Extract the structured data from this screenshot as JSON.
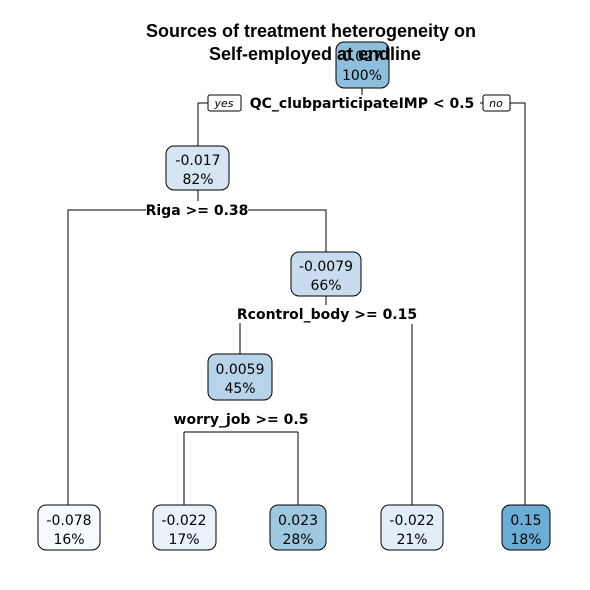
{
  "title": {
    "line1": "Sources of treatment heterogeneity on",
    "line2": "Self-employed at endline"
  },
  "nodes": {
    "root": {
      "value": "0.027",
      "pct": "100%",
      "color": "#8dbfdc"
    },
    "n_left": {
      "value": "-0.017",
      "pct": "82%",
      "color": "#d5e5f4"
    },
    "n_right_mid": {
      "value": "-0.0079",
      "pct": "66%",
      "color": "#c9dcef"
    },
    "n_inner": {
      "value": "0.0059",
      "pct": "45%",
      "color": "#b7d4ea"
    },
    "leaf1": {
      "value": "-0.078",
      "pct": "16%",
      "color": "#f7fbff"
    },
    "leaf2": {
      "value": "-0.022",
      "pct": "17%",
      "color": "#e9f2fa"
    },
    "leaf3": {
      "value": "0.023",
      "pct": "28%",
      "color": "#9dc8e0"
    },
    "leaf4": {
      "value": "-0.022",
      "pct": "21%",
      "color": "#e1edf8"
    },
    "leaf5": {
      "value": "0.15",
      "pct": "18%",
      "color": "#6aaed6"
    }
  },
  "splits": {
    "s_root": "QC_clubparticipateIMP < 0.5",
    "s_left": "Riga >= 0.38",
    "s_mid": "Rcontrol_body >= 0.15",
    "s_inner": "worry_job >= 0.5"
  },
  "labels": {
    "yes": "yes",
    "no": "no"
  }
}
